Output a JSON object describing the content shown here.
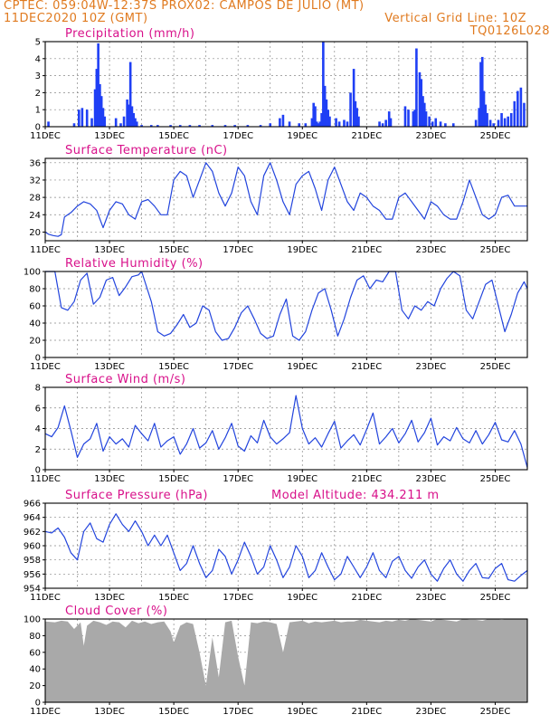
{
  "header": {
    "line1": "CPTEC:  059:04W-12:37S  PROX02: CAMPOS DE JULIO (MT)",
    "line2": "11DEC2020 10Z (GMT)",
    "grid_note": "Vertical Grid Line: 10Z",
    "code": "TQ0126L028"
  },
  "x_ticks": [
    "11DEC",
    "13DEC",
    "15DEC",
    "17DEC",
    "19DEC",
    "21DEC",
    "23DEC",
    "25DEC"
  ],
  "x_tick_days": [
    11,
    13,
    15,
    17,
    19,
    21,
    23,
    25
  ],
  "x_range": [
    11.0,
    26.0
  ],
  "colors": {
    "line": "#2244dd",
    "bar": "#1f3ff5",
    "cloud": "#a9a9a9",
    "title": "#d8108a",
    "header": "#e07a1f"
  },
  "chart_data": [
    {
      "id": "precip",
      "type": "bar",
      "title": "Precipitation (mm/h)",
      "ylim": [
        0,
        5
      ],
      "yticks": [
        0,
        1,
        2,
        3,
        4,
        5
      ],
      "grid": true,
      "x": [
        11.1,
        11.9,
        12.05,
        12.15,
        12.3,
        12.45,
        12.55,
        12.6,
        12.65,
        12.7,
        12.75,
        12.8,
        12.85,
        13.2,
        13.35,
        13.45,
        13.55,
        13.6,
        13.65,
        13.7,
        13.75,
        13.8,
        13.85,
        14.0,
        14.3,
        14.5,
        14.9,
        15.2,
        15.5,
        15.8,
        16.2,
        16.6,
        16.9,
        17.3,
        17.7,
        18.0,
        18.3,
        18.4,
        18.6,
        18.9,
        19.1,
        19.3,
        19.35,
        19.4,
        19.45,
        19.5,
        19.55,
        19.6,
        19.65,
        19.7,
        19.75,
        19.8,
        19.85,
        20.05,
        20.15,
        20.3,
        20.4,
        20.5,
        20.6,
        20.65,
        20.7,
        20.75,
        21.4,
        21.5,
        21.6,
        21.7,
        21.75,
        22.2,
        22.3,
        22.45,
        22.5,
        22.55,
        22.65,
        22.7,
        22.75,
        22.8,
        22.85,
        22.95,
        23.05,
        23.15,
        23.3,
        23.45,
        23.7,
        24.4,
        24.5,
        24.55,
        24.6,
        24.65,
        24.7,
        24.75,
        24.85,
        24.95,
        25.1,
        25.2,
        25.3,
        25.4,
        25.5,
        25.6,
        25.7,
        25.8,
        25.9
      ],
      "values": [
        0.3,
        0.2,
        1.0,
        1.1,
        1.0,
        0.5,
        2.2,
        3.4,
        4.9,
        2.5,
        1.8,
        1.1,
        0.6,
        0.5,
        0.2,
        0.6,
        1.6,
        1.3,
        3.8,
        1.2,
        0.8,
        0.5,
        0.3,
        0.1,
        0.1,
        0.1,
        0.1,
        0.1,
        0.1,
        0.1,
        0.1,
        0.1,
        0.1,
        0.1,
        0.1,
        0.2,
        0.5,
        0.7,
        0.3,
        0.2,
        0.2,
        0.5,
        1.4,
        1.2,
        0.3,
        0.2,
        0.3,
        0.8,
        5.0,
        2.4,
        1.6,
        1.0,
        0.6,
        0.5,
        0.3,
        0.4,
        0.3,
        2.0,
        3.4,
        1.5,
        1.1,
        0.6,
        0.3,
        0.2,
        0.4,
        0.9,
        0.5,
        1.2,
        1.0,
        0.9,
        1.0,
        4.6,
        3.2,
        2.8,
        1.8,
        1.4,
        0.9,
        0.6,
        0.3,
        0.5,
        0.3,
        0.2,
        0.2,
        0.4,
        1.1,
        3.8,
        4.1,
        2.1,
        1.3,
        0.8,
        0.4,
        0.2,
        0.4,
        0.8,
        0.5,
        0.6,
        0.8,
        1.5,
        2.1,
        2.3,
        1.4
      ]
    },
    {
      "id": "temp",
      "type": "line",
      "title": "Surface Temperature (nC)",
      "ylim": [
        18,
        37
      ],
      "yticks": [
        20,
        24,
        28,
        32,
        36
      ],
      "grid": true,
      "x": [
        11.0,
        11.1,
        11.25,
        11.4,
        11.5,
        11.6,
        11.8,
        12.0,
        12.2,
        12.4,
        12.6,
        12.8,
        13.0,
        13.2,
        13.4,
        13.6,
        13.8,
        14.0,
        14.2,
        14.4,
        14.6,
        14.8,
        15.0,
        15.2,
        15.4,
        15.6,
        15.8,
        16.0,
        16.2,
        16.4,
        16.6,
        16.8,
        17.0,
        17.2,
        17.4,
        17.6,
        17.8,
        18.0,
        18.2,
        18.4,
        18.6,
        18.8,
        19.0,
        19.2,
        19.4,
        19.6,
        19.8,
        20.0,
        20.2,
        20.4,
        20.6,
        20.8,
        21.0,
        21.2,
        21.4,
        21.6,
        21.8,
        22.0,
        22.2,
        22.4,
        22.6,
        22.8,
        23.0,
        23.2,
        23.4,
        23.6,
        23.8,
        24.0,
        24.2,
        24.4,
        24.6,
        24.8,
        25.0,
        25.2,
        25.4,
        25.6,
        25.8,
        26.0
      ],
      "values": [
        20,
        19.5,
        19.2,
        19.0,
        19.4,
        23.5,
        24.5,
        26,
        27,
        26.5,
        25,
        21,
        25,
        27,
        26.5,
        24,
        23,
        27,
        27.5,
        26,
        24,
        24,
        32,
        34,
        33,
        28,
        32,
        36,
        34,
        29,
        26,
        29,
        35,
        33,
        27,
        24,
        33,
        36,
        32,
        27,
        24,
        31,
        33,
        34,
        30,
        25,
        32,
        35,
        31,
        27,
        25,
        29,
        28,
        26,
        25,
        23,
        23,
        28,
        29,
        27,
        25,
        23,
        27,
        26,
        24,
        23,
        23,
        27,
        32,
        28,
        24,
        23,
        24,
        28,
        28.5,
        26,
        26,
        26
      ]
    },
    {
      "id": "rh",
      "type": "line",
      "title": "Relative Humidity (%)",
      "ylim": [
        0,
        100
      ],
      "yticks": [
        0,
        20,
        40,
        60,
        80,
        100
      ],
      "grid": true,
      "x": [
        11.0,
        11.3,
        11.5,
        11.7,
        11.9,
        12.1,
        12.3,
        12.5,
        12.7,
        12.9,
        13.1,
        13.3,
        13.5,
        13.7,
        13.9,
        14.0,
        14.3,
        14.5,
        14.7,
        14.9,
        15.1,
        15.3,
        15.5,
        15.7,
        15.9,
        16.1,
        16.3,
        16.5,
        16.7,
        16.9,
        17.1,
        17.3,
        17.5,
        17.7,
        17.9,
        18.1,
        18.3,
        18.5,
        18.7,
        18.9,
        19.1,
        19.3,
        19.5,
        19.7,
        19.9,
        20.1,
        20.3,
        20.5,
        20.7,
        20.9,
        21.1,
        21.3,
        21.5,
        21.7,
        21.9,
        22.1,
        22.3,
        22.5,
        22.7,
        22.9,
        23.1,
        23.3,
        23.5,
        23.7,
        23.9,
        24.1,
        24.3,
        24.5,
        24.7,
        24.9,
        25.1,
        25.3,
        25.5,
        25.7,
        25.9,
        26.0
      ],
      "values": [
        100,
        100,
        58,
        55,
        65,
        90,
        98,
        62,
        70,
        90,
        93,
        72,
        82,
        94,
        96,
        100,
        65,
        30,
        25,
        28,
        38,
        50,
        35,
        40,
        60,
        55,
        30,
        20,
        22,
        35,
        52,
        60,
        45,
        28,
        22,
        25,
        50,
        68,
        25,
        20,
        30,
        55,
        75,
        80,
        55,
        25,
        45,
        70,
        90,
        95,
        80,
        90,
        88,
        100,
        100,
        55,
        45,
        60,
        55,
        65,
        60,
        80,
        92,
        100,
        95,
        55,
        45,
        65,
        85,
        90,
        60,
        30,
        50,
        75,
        88,
        80
      ]
    },
    {
      "id": "wind",
      "type": "line",
      "title": "Surface Wind (m/s)",
      "ylim": [
        0,
        8
      ],
      "yticks": [
        0,
        2,
        4,
        6,
        8
      ],
      "grid": true,
      "x": [
        11.0,
        11.2,
        11.4,
        11.6,
        11.8,
        12.0,
        12.2,
        12.4,
        12.6,
        12.8,
        13.0,
        13.2,
        13.4,
        13.6,
        13.8,
        14.0,
        14.2,
        14.4,
        14.6,
        14.8,
        15.0,
        15.2,
        15.4,
        15.6,
        15.8,
        16.0,
        16.2,
        16.4,
        16.6,
        16.8,
        17.0,
        17.2,
        17.4,
        17.6,
        17.8,
        18.0,
        18.2,
        18.4,
        18.6,
        18.8,
        19.0,
        19.2,
        19.4,
        19.6,
        19.8,
        20.0,
        20.2,
        20.4,
        20.6,
        20.8,
        21.0,
        21.2,
        21.4,
        21.6,
        21.8,
        22.0,
        22.2,
        22.4,
        22.6,
        22.8,
        23.0,
        23.2,
        23.4,
        23.6,
        23.8,
        24.0,
        24.2,
        24.4,
        24.6,
        24.8,
        25.0,
        25.2,
        25.4,
        25.6,
        25.8,
        26.0
      ],
      "values": [
        3.5,
        3.2,
        4.1,
        6.2,
        3.8,
        1.2,
        2.5,
        3.0,
        4.5,
        1.8,
        3.2,
        2.5,
        3.0,
        2.2,
        4.3,
        3.5,
        2.8,
        4.5,
        2.2,
        2.8,
        3.2,
        1.5,
        2.5,
        4.0,
        2.1,
        2.6,
        3.8,
        2.0,
        3.1,
        4.5,
        2.3,
        1.8,
        3.3,
        2.6,
        4.8,
        3.2,
        2.5,
        3.0,
        3.6,
        7.2,
        4.0,
        2.5,
        3.1,
        2.2,
        3.5,
        4.7,
        2.1,
        2.8,
        3.4,
        2.4,
        3.9,
        5.5,
        2.5,
        3.2,
        4.0,
        2.6,
        3.5,
        4.8,
        2.7,
        3.6,
        5.0,
        2.4,
        3.2,
        2.8,
        4.1,
        3.0,
        2.6,
        3.8,
        2.5,
        3.4,
        4.6,
        2.9,
        2.7,
        3.8,
        2.5,
        0.2
      ]
    },
    {
      "id": "pres",
      "type": "line",
      "title": "Surface Pressure (hPa)",
      "note": "Model Altitude: 434.211 m",
      "ylim": [
        954,
        966
      ],
      "yticks": [
        954,
        956,
        958,
        960,
        962,
        964,
        966
      ],
      "grid": true,
      "x": [
        11.0,
        11.2,
        11.4,
        11.6,
        11.8,
        12.0,
        12.2,
        12.4,
        12.6,
        12.8,
        13.0,
        13.2,
        13.4,
        13.6,
        13.8,
        14.0,
        14.2,
        14.4,
        14.6,
        14.8,
        15.0,
        15.2,
        15.4,
        15.6,
        15.8,
        16.0,
        16.2,
        16.4,
        16.6,
        16.8,
        17.0,
        17.2,
        17.4,
        17.6,
        17.8,
        18.0,
        18.2,
        18.4,
        18.6,
        18.8,
        19.0,
        19.2,
        19.4,
        19.6,
        19.8,
        20.0,
        20.2,
        20.4,
        20.6,
        20.8,
        21.0,
        21.2,
        21.4,
        21.6,
        21.8,
        22.0,
        22.2,
        22.4,
        22.6,
        22.8,
        23.0,
        23.2,
        23.4,
        23.6,
        23.8,
        24.0,
        24.2,
        24.4,
        24.6,
        24.8,
        25.0,
        25.2,
        25.4,
        25.6,
        25.8,
        26.0
      ],
      "values": [
        962,
        961.8,
        962.5,
        961.2,
        959,
        958,
        962,
        963.2,
        961,
        960.5,
        963,
        964.5,
        963,
        962,
        963.5,
        962,
        960,
        961.5,
        960,
        961.5,
        959,
        956.5,
        957.5,
        960,
        957.5,
        955.5,
        956.5,
        959.5,
        958.5,
        956,
        958,
        960.5,
        958.5,
        956,
        957,
        960,
        958,
        955.5,
        957,
        960,
        958.5,
        955.5,
        956.5,
        959,
        957,
        955.2,
        956,
        958.5,
        957,
        955.5,
        957,
        959,
        956.5,
        955.5,
        957.8,
        958.5,
        956.5,
        955.4,
        957,
        958,
        956,
        955,
        956.8,
        958,
        956,
        955,
        956.5,
        957.5,
        955.5,
        955.4,
        956.8,
        957.5,
        955.2,
        955,
        955.8,
        956.5
      ]
    },
    {
      "id": "cloud",
      "type": "area",
      "title": "Cloud Cover (%)",
      "ylim": [
        0,
        100
      ],
      "yticks": [
        0,
        20,
        40,
        60,
        80,
        100
      ],
      "grid": true,
      "x": [
        11.0,
        11.3,
        11.5,
        11.7,
        11.9,
        12.1,
        12.2,
        12.3,
        12.5,
        12.7,
        12.9,
        13.1,
        13.3,
        13.5,
        13.7,
        13.9,
        14.1,
        14.3,
        14.5,
        14.7,
        14.9,
        15.0,
        15.2,
        15.4,
        15.6,
        15.8,
        16.0,
        16.2,
        16.4,
        16.6,
        16.8,
        17.0,
        17.2,
        17.4,
        17.6,
        17.8,
        18.0,
        18.2,
        18.4,
        18.6,
        18.8,
        19.0,
        19.2,
        19.4,
        19.6,
        19.8,
        20.0,
        20.2,
        20.4,
        20.6,
        20.8,
        21.0,
        21.2,
        21.4,
        21.6,
        21.8,
        22.0,
        22.2,
        22.4,
        22.6,
        22.8,
        23.0,
        23.2,
        23.4,
        23.6,
        23.8,
        24.0,
        24.2,
        24.4,
        24.6,
        24.8,
        25.0,
        25.2,
        25.4,
        25.6,
        25.8,
        26.0
      ],
      "values": [
        97,
        96,
        98,
        97,
        88,
        96,
        68,
        92,
        98,
        96,
        93,
        97,
        96,
        90,
        98,
        95,
        97,
        94,
        96,
        97,
        85,
        72,
        92,
        96,
        94,
        60,
        20,
        78,
        30,
        96,
        98,
        55,
        20,
        96,
        95,
        97,
        96,
        94,
        60,
        96,
        97,
        98,
        95,
        97,
        96,
        97,
        98,
        96,
        97,
        97,
        99,
        98,
        97,
        96,
        98,
        97,
        99,
        98,
        100,
        99,
        98,
        97,
        100,
        99,
        98,
        97,
        100,
        99,
        99,
        98,
        100,
        100,
        99,
        100,
        100,
        100,
        100
      ]
    }
  ]
}
